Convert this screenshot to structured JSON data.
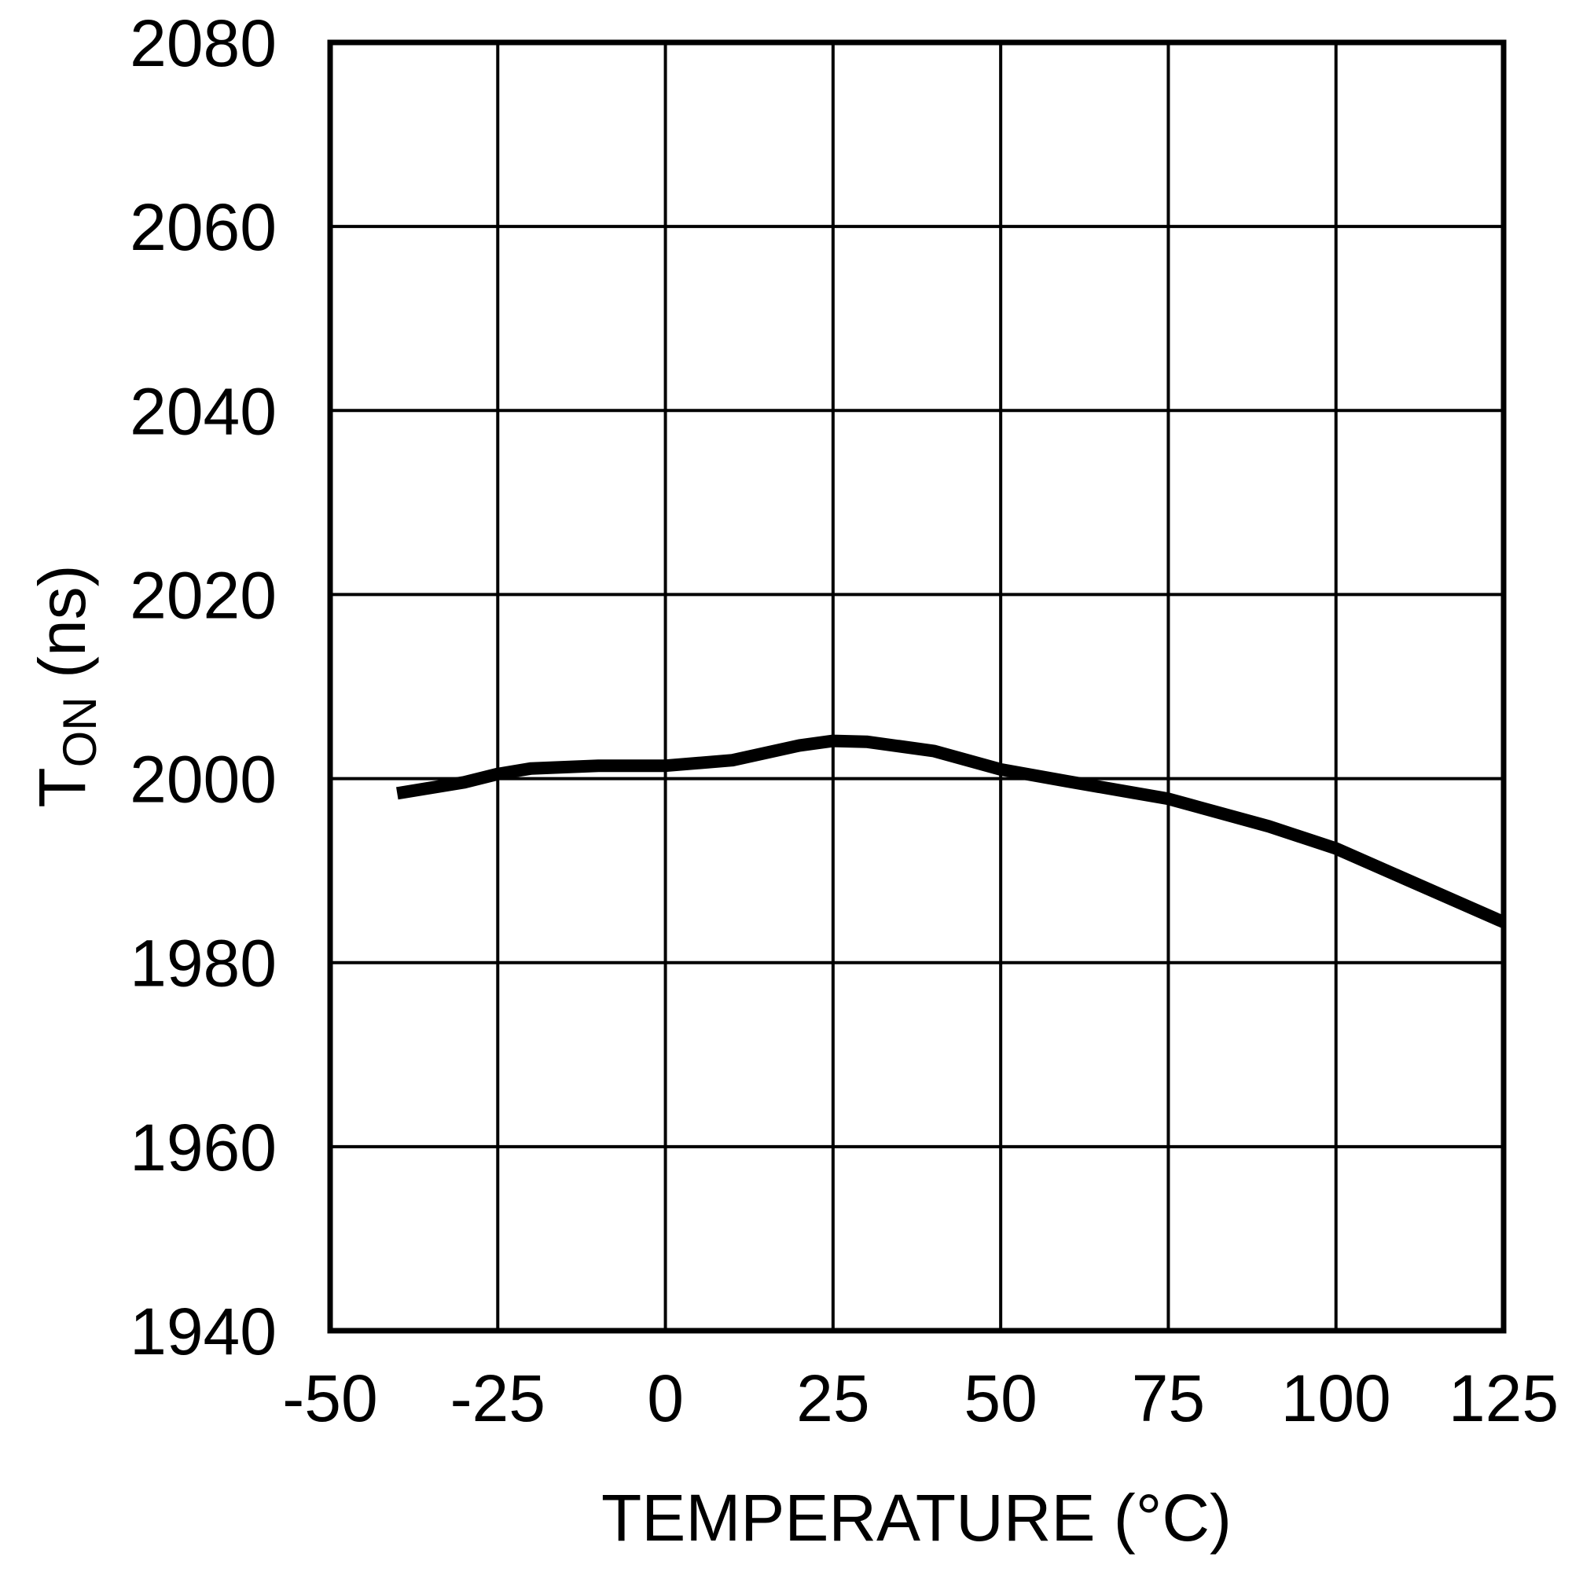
{
  "chart_data": {
    "type": "line",
    "title": "",
    "xlabel": "TEMPERATURE (°C)",
    "ylabel": "T_ON (ns)",
    "ylabel_main": "T",
    "ylabel_sub": "ON",
    "ylabel_unit": " (ns)",
    "xlim": [
      -50,
      125
    ],
    "ylim": [
      1940,
      2080
    ],
    "x_ticks": [
      -50,
      -25,
      0,
      25,
      50,
      75,
      100,
      125
    ],
    "y_ticks": [
      1940,
      1960,
      1980,
      2000,
      2020,
      2040,
      2060,
      2080
    ],
    "grid": true,
    "legend": null,
    "series": [
      {
        "name": "T_ON",
        "color": "#000000",
        "x": [
          -40,
          -30,
          -25,
          -20,
          -10,
          0,
          10,
          15,
          20,
          25,
          30,
          40,
          50,
          60,
          75,
          90,
          100,
          110,
          125
        ],
        "y": [
          1998.4,
          1999.6,
          2000.5,
          2001.1,
          2001.4,
          2001.4,
          2002.0,
          2002.8,
          2003.6,
          2004.1,
          2004.0,
          2003.0,
          2001.0,
          1999.7,
          1997.8,
          1994.8,
          1992.4,
          1989.2,
          1984.4
        ]
      }
    ]
  }
}
